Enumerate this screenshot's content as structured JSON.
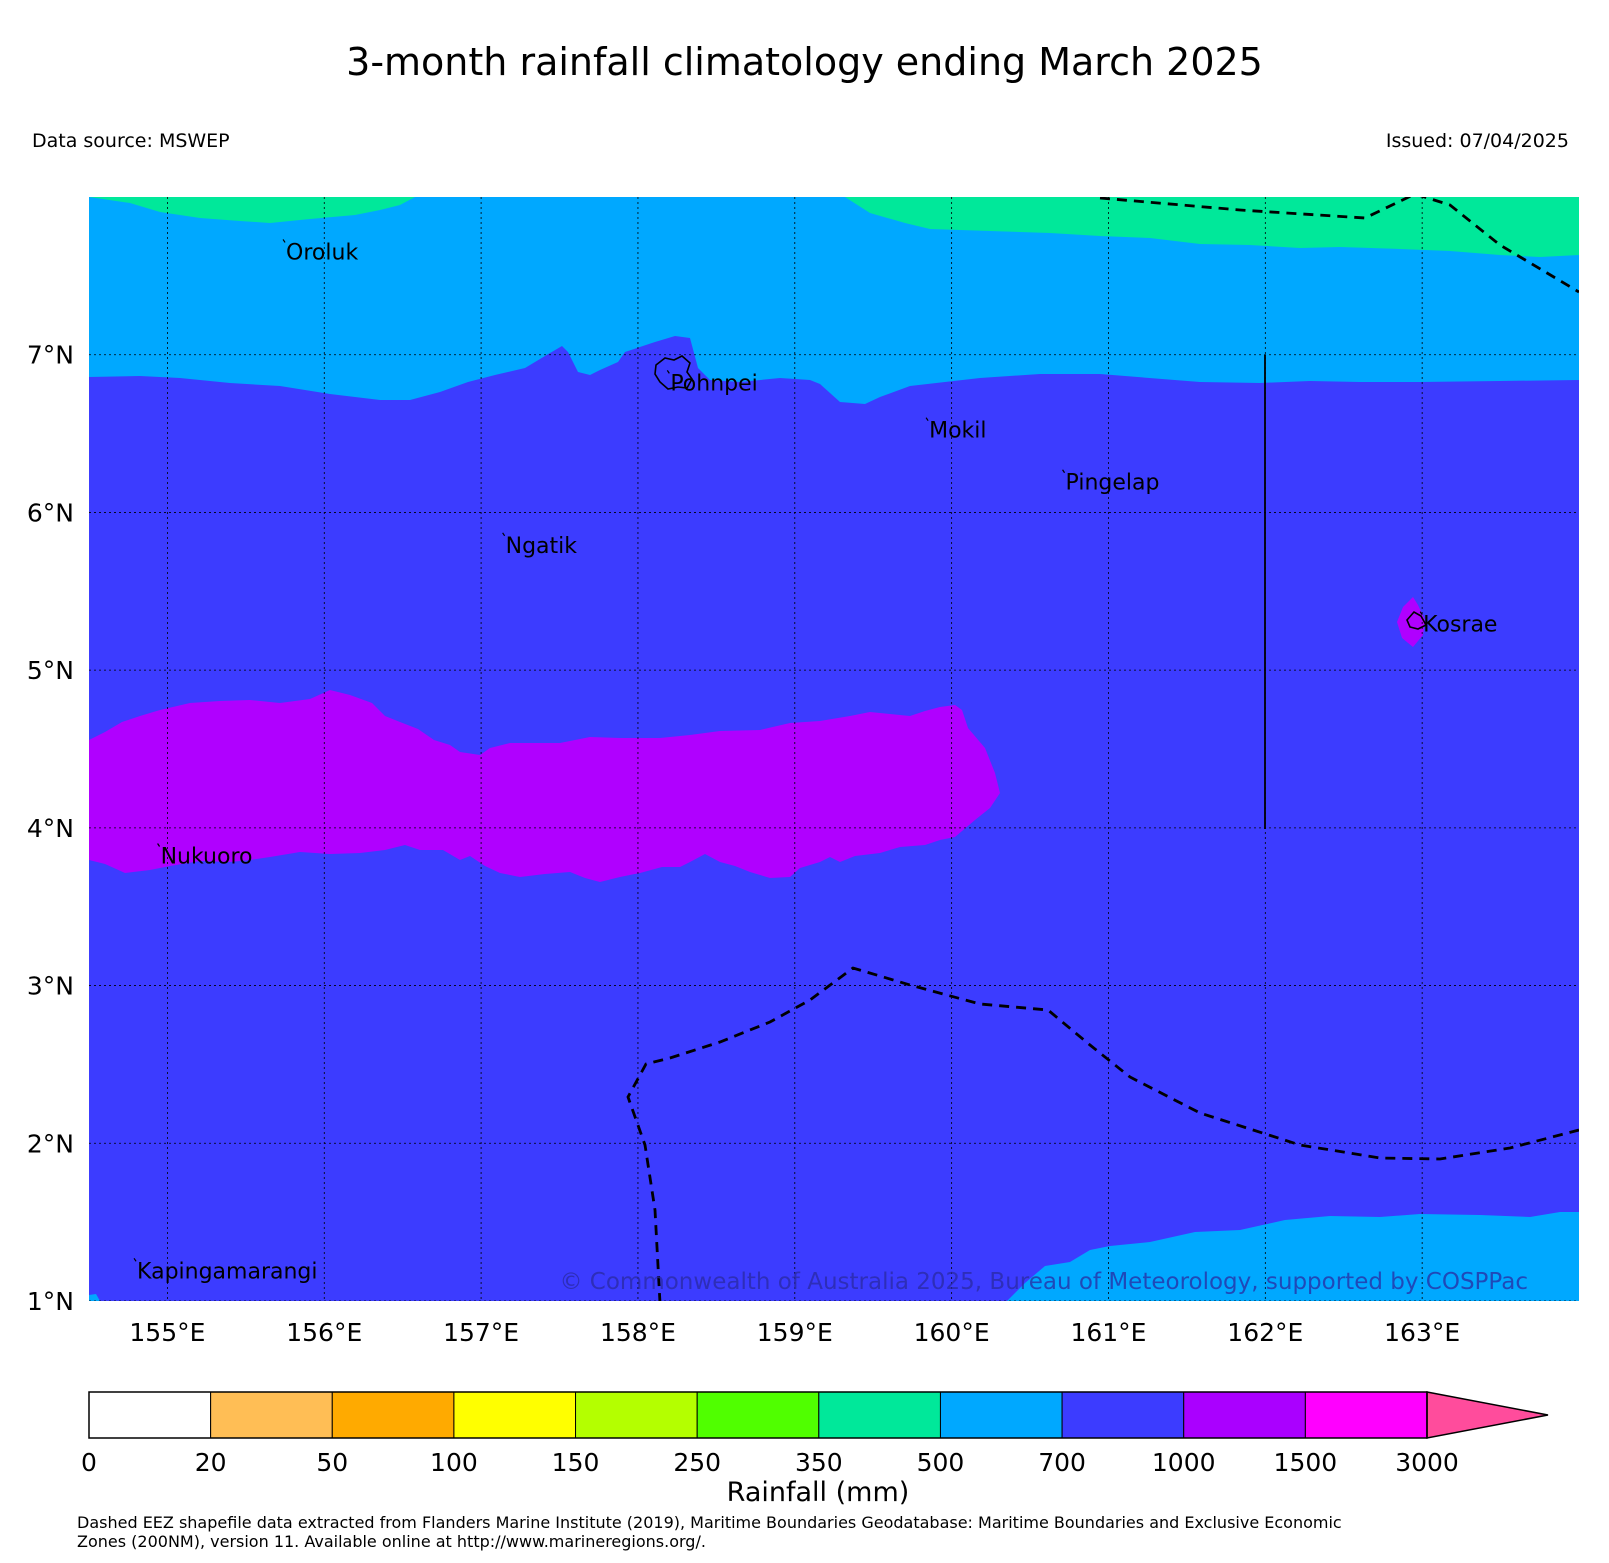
{
  "header": {
    "title": "3-month rainfall climatology ending March 2025",
    "data_source": "Data source: MSWEP",
    "issued": "Issued: 07/04/2025"
  },
  "map": {
    "lon_range": [
      154.5,
      164.0
    ],
    "lat_range": [
      1.0,
      8.0
    ],
    "x_ticks": [
      {
        "value": 155,
        "label": "155°E"
      },
      {
        "value": 156,
        "label": "156°E"
      },
      {
        "value": 157,
        "label": "157°E"
      },
      {
        "value": 158,
        "label": "158°E"
      },
      {
        "value": 159,
        "label": "159°E"
      },
      {
        "value": 160,
        "label": "160°E"
      },
      {
        "value": 161,
        "label": "161°E"
      },
      {
        "value": 162,
        "label": "162°E"
      },
      {
        "value": 163,
        "label": "163°E"
      }
    ],
    "y_ticks": [
      {
        "value": 1,
        "label": "1°N"
      },
      {
        "value": 2,
        "label": "2°N"
      },
      {
        "value": 3,
        "label": "3°N"
      },
      {
        "value": 4,
        "label": "4°N"
      },
      {
        "value": 5,
        "label": "5°N"
      },
      {
        "value": 6,
        "label": "6°N"
      },
      {
        "value": 7,
        "label": "7°N"
      }
    ],
    "grid": true,
    "islands": [
      {
        "name": "Oroluk",
        "lon": 155.75,
        "lat": 7.68
      },
      {
        "name": "Pohnpei",
        "lon": 158.2,
        "lat": 6.85
      },
      {
        "name": "Mokil",
        "lon": 159.85,
        "lat": 6.55
      },
      {
        "name": "Pingelap",
        "lon": 160.72,
        "lat": 6.22
      },
      {
        "name": "Ngatik",
        "lon": 157.15,
        "lat": 5.82
      },
      {
        "name": "Kosrae",
        "lon": 163.0,
        "lat": 5.32
      },
      {
        "name": "Nukuoro",
        "lon": 154.95,
        "lat": 3.85
      },
      {
        "name": "Kapingamarangi",
        "lon": 154.8,
        "lat": 1.22
      }
    ],
    "copyright": "© Commonwealth of Australia 2025, Bureau of Meteorology, supported by COSPPac",
    "rainfall_zones": [
      {
        "category": "350-500",
        "color": "#00e89a"
      },
      {
        "category": "500-700",
        "color": "#00a8ff"
      },
      {
        "category": "700-1000",
        "color": "#3c3cff"
      },
      {
        "category": "1000-1500",
        "color": "#b000ff"
      }
    ]
  },
  "colorbar": {
    "label": "Rainfall (mm)",
    "ticks": [
      "0",
      "20",
      "50",
      "100",
      "150",
      "250",
      "350",
      "500",
      "700",
      "1000",
      "1500",
      "3000"
    ],
    "colors": [
      "#ffffff",
      "#ffbe55",
      "#ffaa00",
      "#ffff00",
      "#b4ff00",
      "#50ff00",
      "#00e89a",
      "#00a8ff",
      "#3c3cff",
      "#aa00ff",
      "#ff00ff"
    ],
    "extend_color": "#ff4c9c"
  },
  "footnote": {
    "line1": "Dashed EEZ shapefile data extracted from Flanders Marine Institute (2019), Maritime Boundaries Geodatabase: Maritime Boundaries and Exclusive Economic",
    "line2": "Zones (200NM), version 11. Available online at http://www.marineregions.org/."
  }
}
